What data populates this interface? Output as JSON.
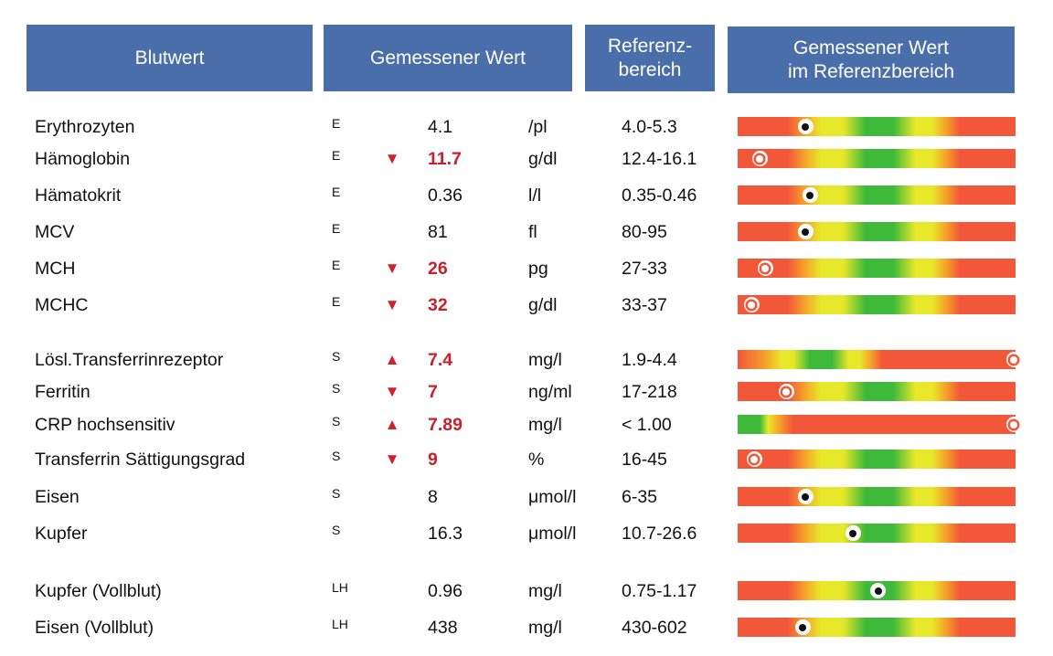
{
  "header": {
    "col_name": "Blutwert",
    "col_measured": "Gemessener Wert",
    "col_reference_line1": "Referenz-",
    "col_reference_line2": "bereich",
    "col_in_range_line1": "Gemessener Wert",
    "col_in_range_line2": "im Referenzbereich"
  },
  "colors": {
    "header_bg": "#4a6ea9",
    "abnormal_value": "#c8202a",
    "bar_red": "#f2573a",
    "bar_orange": "#f6a12a",
    "bar_yellow": "#e8e82a",
    "bar_green": "#3fb93a"
  },
  "rows": [
    {
      "name": "Erythrozyten",
      "code": "E",
      "flag": "",
      "value": "4.1",
      "unit": "/pl",
      "reference": "4.0-5.3",
      "bar_type": "range",
      "marker_pct": 24.5,
      "abnormal": false
    },
    {
      "name": "Hämoglobin",
      "code": "E",
      "flag": "▼",
      "value": "11.7",
      "unit": "g/dl",
      "reference": "12.4-16.1",
      "bar_type": "range",
      "marker_pct": 8,
      "abnormal": true
    },
    {
      "name": "Hämatokrit",
      "code": "E",
      "flag": "",
      "value": "0.36",
      "unit": "l/l",
      "reference": "0.35-0.46",
      "bar_type": "range",
      "marker_pct": 26,
      "abnormal": false
    },
    {
      "name": "MCV",
      "code": "E",
      "flag": "",
      "value": "81",
      "unit": "fl",
      "reference": "80-95",
      "bar_type": "range",
      "marker_pct": 24.5,
      "abnormal": false
    },
    {
      "name": "MCH",
      "code": "E",
      "flag": "▼",
      "value": "26",
      "unit": "pg",
      "reference": "27-33",
      "bar_type": "range",
      "marker_pct": 10,
      "abnormal": true
    },
    {
      "name": "MCHC",
      "code": "E",
      "flag": "▼",
      "value": "32",
      "unit": "g/dl",
      "reference": "33-37",
      "bar_type": "range",
      "marker_pct": 5,
      "abnormal": true
    },
    {
      "name": "Lösl.Transferrinrezeptor",
      "code": "S",
      "flag": "▲",
      "value": "7.4",
      "unit": "mg/l",
      "reference": "1.9-4.4",
      "bar_type": "range_left",
      "marker_pct": 99.5,
      "abnormal": true
    },
    {
      "name": "Ferritin",
      "code": "S",
      "flag": "▼",
      "value": "7",
      "unit": "ng/ml",
      "reference": "17-218",
      "bar_type": "range",
      "marker_pct": 17.5,
      "abnormal": true
    },
    {
      "name": "CRP hochsensitiv",
      "code": "S",
      "flag": "▲",
      "value": "7.89",
      "unit": "mg/l",
      "reference": "< 1.00",
      "bar_type": "low_good",
      "marker_pct": 99.5,
      "abnormal": true
    },
    {
      "name": "Transferrin Sättigungsgrad",
      "code": "S",
      "flag": "▼",
      "value": "9",
      "unit": "%",
      "reference": "16-45",
      "bar_type": "range",
      "marker_pct": 6,
      "abnormal": true
    },
    {
      "name": "Eisen",
      "code": "S",
      "flag": "",
      "value": "8",
      "unit": "μmol/l",
      "reference": "6-35",
      "bar_type": "range",
      "marker_pct": 24.5,
      "abnormal": false
    },
    {
      "name": "Kupfer",
      "code": "S",
      "flag": "",
      "value": "16.3",
      "unit": "μmol/l",
      "reference": "10.7-26.6",
      "bar_type": "range",
      "marker_pct": 41.5,
      "abnormal": false
    },
    {
      "name": "Kupfer (Vollblut)",
      "code": "LH",
      "flag": "",
      "value": "0.96",
      "unit": "mg/l",
      "reference": "0.75-1.17",
      "bar_type": "range",
      "marker_pct": 50.5,
      "abnormal": false
    },
    {
      "name": "Eisen (Vollblut)",
      "code": "LH",
      "flag": "",
      "value": "438",
      "unit": "mg/l",
      "reference": "430-602",
      "bar_type": "range",
      "marker_pct": 23.5,
      "abnormal": false
    }
  ]
}
